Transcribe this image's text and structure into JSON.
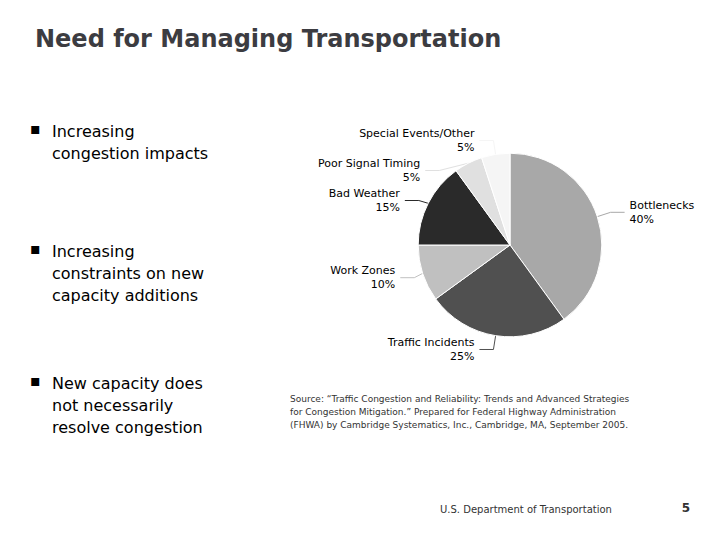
{
  "chart_data": {
    "type": "pie",
    "title": "Need for Managing Transportation",
    "categories": [
      "Bottlenecks",
      "Traffic Incidents",
      "Work Zones",
      "Bad Weather",
      "Poor Signal Timing",
      "Special Events/Other"
    ],
    "values": [
      40,
      25,
      10,
      15,
      5,
      5
    ],
    "value_labels": [
      "40%",
      "25%",
      "10%",
      "15%",
      "5%",
      "5%"
    ],
    "colors": [
      "#A8A8A8",
      "#505050",
      "#C0C0C0",
      "#2A2A2A",
      "#E0E0E0",
      "#F5F5F5"
    ],
    "data_labels": true,
    "bullet_symbol": "▪",
    "bullets": [
      "Increasing\ncongestion impacts",
      "Increasing\nconstraints on new\ncapacity additions",
      "New capacity does\nnot necessarily\nresolve congestion"
    ],
    "annotations": [
      "Source: “Traffic Congestion and Reliability: Trends and Advanced Strategies\nfor Congestion Mitigation.” Prepared for Federal Highway Administration\n(FHWA) by Cambridge Systematics, Inc., Cambridge, MA, September 2005.",
      "U.S. Department of Transportation",
      "5"
    ]
  }
}
